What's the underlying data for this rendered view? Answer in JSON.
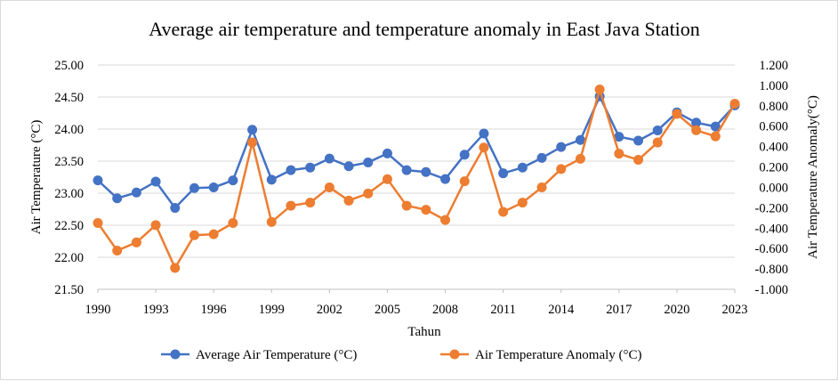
{
  "chart_data": {
    "type": "line",
    "title": "Average air temperature and temperature anomaly in East Java Station",
    "xlabel": "Tahun",
    "ylabel": "Air Temperature (°C)",
    "y2label": "Air Temperature Anomaly(°C)",
    "ylim": [
      21.5,
      25.0
    ],
    "y2lim": [
      -1.0,
      1.2
    ],
    "x_ticks": [
      "1990",
      "1993",
      "1996",
      "1999",
      "2002",
      "2005",
      "2008",
      "2011",
      "2014",
      "2017",
      "2020",
      "2023"
    ],
    "y_ticks": [
      "21.50",
      "22.00",
      "22.50",
      "23.00",
      "23.50",
      "24.00",
      "24.50",
      "25.00"
    ],
    "y2_ticks": [
      "-1.000",
      "-0.800",
      "-0.600",
      "-0.400",
      "-0.200",
      "0.000",
      "0.200",
      "0.400",
      "0.600",
      "0.800",
      "1.000",
      "1.200"
    ],
    "grid": true,
    "legend_position": "bottom",
    "x": [
      1990,
      1991,
      1992,
      1993,
      1994,
      1995,
      1996,
      1997,
      1998,
      1999,
      2000,
      2001,
      2002,
      2003,
      2004,
      2005,
      2006,
      2007,
      2008,
      2009,
      2010,
      2011,
      2012,
      2013,
      2014,
      2015,
      2016,
      2017,
      2018,
      2019,
      2020,
      2021,
      2022,
      2023
    ],
    "series": [
      {
        "name": "Average Air Temperature (°C)",
        "axis": "left",
        "color": "#4472C4",
        "values": [
          23.2,
          22.92,
          23.01,
          23.18,
          22.77,
          23.08,
          23.09,
          23.2,
          23.99,
          23.21,
          23.36,
          23.4,
          23.54,
          23.42,
          23.48,
          23.62,
          23.36,
          23.33,
          23.22,
          23.6,
          23.93,
          23.31,
          23.4,
          23.55,
          23.72,
          23.83,
          24.51,
          23.88,
          23.82,
          23.98,
          24.26,
          24.1,
          24.04,
          24.37
        ]
      },
      {
        "name": "Air Temperature Anomaly (°C)",
        "axis": "right",
        "color": "#ED7D31",
        "values": [
          -0.35,
          -0.62,
          -0.54,
          -0.37,
          -0.79,
          -0.47,
          -0.46,
          -0.35,
          0.44,
          -0.34,
          -0.18,
          -0.15,
          0.0,
          -0.13,
          -0.06,
          0.08,
          -0.18,
          -0.22,
          -0.32,
          0.06,
          0.39,
          -0.24,
          -0.15,
          0.0,
          0.18,
          0.28,
          0.96,
          0.33,
          0.27,
          0.44,
          0.72,
          0.56,
          0.5,
          0.82
        ]
      }
    ]
  }
}
